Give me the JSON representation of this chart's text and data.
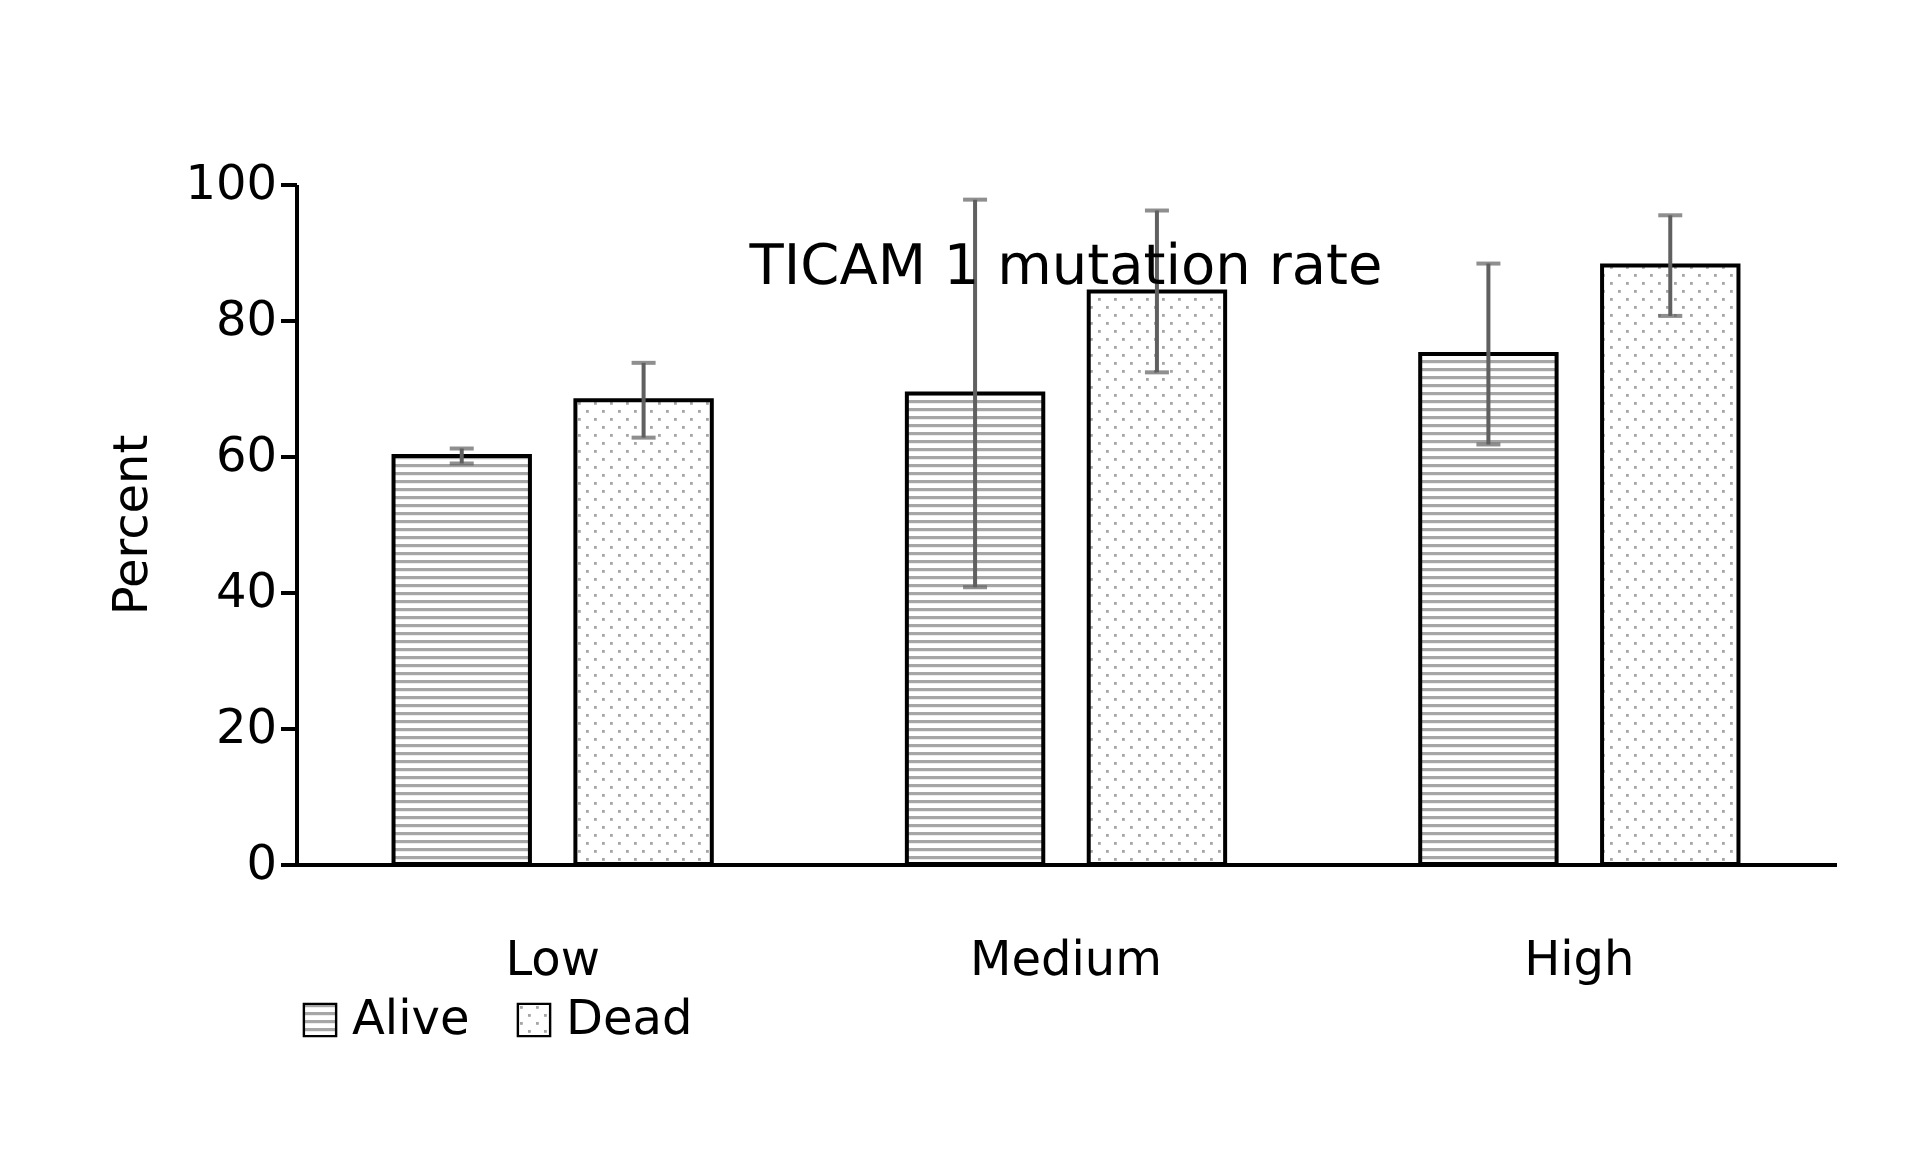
{
  "chart_data": {
    "type": "bar",
    "title": "TICAM 1 mutation rate",
    "ylabel": "Percent",
    "categories": [
      "Low",
      "Medium",
      "High"
    ],
    "series": [
      {
        "name": "Alive",
        "color": "#000000",
        "values": [
          60.0,
          69.2,
          75.0
        ],
        "errors": [
          1.1,
          28.5,
          13.3
        ]
      },
      {
        "name": "Dead",
        "color": "#000000",
        "values": [
          68.2,
          84.2,
          88.0
        ],
        "errors": [
          5.5,
          11.9,
          7.4
        ]
      }
    ],
    "ylim": [
      0,
      100
    ],
    "yticks": [
      0,
      20,
      40,
      60,
      80,
      100
    ],
    "grid": false,
    "legend": "bottom"
  }
}
